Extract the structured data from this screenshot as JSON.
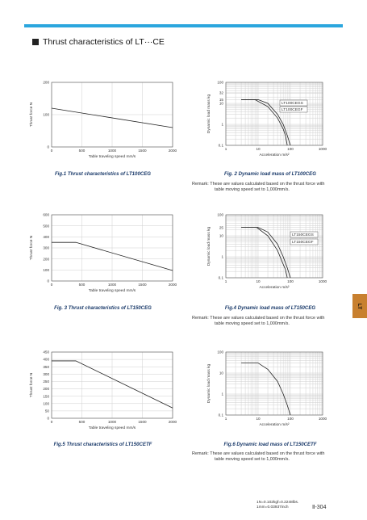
{
  "page": {
    "title": "Thrust characteristics of LT···CE",
    "tab": "LT",
    "footer_note": [
      "1N=0.102kgf=0.2248lbs.",
      "1mm=0.03937inch"
    ],
    "page_number": "Ⅱ-304",
    "accent_color": "#2ba6de",
    "tab_color": "#c8802f"
  },
  "remarks": [
    {
      "line1": "Remark: These are values calculated based on the thrust force with",
      "line2": "table moving speed set to 1,000mm/s."
    },
    {
      "line1": "Remark: These are values calculated based on the thrust force with",
      "line2": "table moving speed set to 1,000mm/s."
    },
    {
      "line1": "Remark: These are values calculated based on the thrust force with",
      "line2": "table moving speed set to 1,000mm/s."
    }
  ],
  "chart_data": [
    {
      "id": "fig1",
      "type": "line",
      "caption": "Fig.1  Thrust characteristics of LT100CEG",
      "xlabel": "Table traveling speed mm/s",
      "ylabel": "Thrust force N",
      "xscale": "linear",
      "yscale": "linear",
      "xlim": [
        0,
        2000
      ],
      "ylim": [
        0,
        200
      ],
      "xticks": [
        0,
        500,
        1000,
        1500,
        2000
      ],
      "yticks": [
        0,
        100,
        200
      ],
      "xgrid": [
        0,
        500,
        1000,
        1500,
        2000
      ],
      "ygrid": [
        0,
        100,
        200
      ],
      "series": [
        {
          "x": [
            0,
            2000
          ],
          "y": [
            120,
            60
          ]
        }
      ]
    },
    {
      "id": "fig2",
      "type": "line",
      "caption": "Fig. 2  Dynamic load mass of LT100CEG",
      "xlabel": "Acceleration m/s²",
      "ylabel": "Dynamic load mass kg",
      "xscale": "log",
      "yscale": "log",
      "xlim": [
        1,
        1000
      ],
      "ylim": [
        0.1,
        100
      ],
      "xticks": [
        1,
        10,
        100,
        1000
      ],
      "yticks": [
        0.1,
        1,
        10,
        15,
        32,
        100
      ],
      "xgrid": [
        1,
        2,
        3,
        4,
        5,
        6,
        7,
        8,
        9,
        10,
        20,
        30,
        40,
        50,
        60,
        70,
        80,
        90,
        100,
        200,
        300,
        400,
        500,
        600,
        700,
        800,
        900,
        1000
      ],
      "ygrid": [
        0.1,
        0.2,
        0.3,
        0.4,
        0.5,
        0.6,
        0.7,
        0.8,
        0.9,
        1,
        2,
        3,
        4,
        5,
        6,
        7,
        8,
        9,
        10,
        15,
        20,
        30,
        32,
        40,
        50,
        60,
        70,
        80,
        90,
        100
      ],
      "legend": [
        "LT100CEGS",
        "LT100CEGF"
      ],
      "series": [
        {
          "name": "LT100CEGS",
          "x": [
            3,
            10,
            20,
            40,
            60,
            80,
            100
          ],
          "y": [
            15,
            15,
            10,
            3,
            1,
            0.3,
            0.1
          ]
        },
        {
          "name": "LT100CEGF",
          "x": [
            3,
            8,
            20,
            40,
            60,
            70,
            80
          ],
          "y": [
            15,
            15,
            7,
            2,
            0.6,
            0.3,
            0.1
          ]
        }
      ]
    },
    {
      "id": "fig3",
      "type": "line",
      "caption": "Fig. 3  Thrust characteristics of LT150CEG",
      "xlabel": "Table traveling speed mm/s",
      "ylabel": "Thrust force N",
      "xscale": "linear",
      "yscale": "linear",
      "xlim": [
        0,
        2000
      ],
      "ylim": [
        0,
        600
      ],
      "xticks": [
        0,
        500,
        1000,
        1500,
        2000
      ],
      "yticks": [
        0,
        100,
        200,
        300,
        400,
        500,
        600
      ],
      "xgrid": [
        0,
        500,
        1000,
        1500,
        2000
      ],
      "ygrid": [
        0,
        100,
        200,
        300,
        400,
        500,
        600
      ],
      "series": [
        {
          "x": [
            0,
            400,
            2000
          ],
          "y": [
            350,
            350,
            95
          ]
        }
      ]
    },
    {
      "id": "fig4",
      "type": "line",
      "caption": "Fig.4  Dynamic load mass of LT150CEG",
      "xlabel": "Acceleration m/s²",
      "ylabel": "Dynamic load mass kg",
      "xscale": "log",
      "yscale": "log",
      "xlim": [
        1,
        1000
      ],
      "ylim": [
        0.1,
        100
      ],
      "xticks": [
        1,
        10,
        100,
        1000
      ],
      "yticks": [
        0.1,
        1,
        10,
        25,
        100
      ],
      "xgrid": [
        1,
        2,
        3,
        4,
        5,
        6,
        7,
        8,
        9,
        10,
        20,
        30,
        40,
        50,
        60,
        70,
        80,
        90,
        100,
        200,
        300,
        400,
        500,
        600,
        700,
        800,
        900,
        1000
      ],
      "ygrid": [
        0.1,
        0.2,
        0.3,
        0.4,
        0.5,
        0.6,
        0.7,
        0.8,
        0.9,
        1,
        2,
        3,
        4,
        5,
        6,
        7,
        8,
        9,
        10,
        20,
        25,
        30,
        40,
        50,
        60,
        70,
        80,
        90,
        100
      ],
      "legend": [
        "LT150CEGS",
        "LT150CEGF"
      ],
      "series": [
        {
          "name": "LT150CEGS",
          "x": [
            3,
            10,
            20,
            40,
            60,
            80,
            100
          ],
          "y": [
            25,
            25,
            15,
            4,
            1,
            0.3,
            0.1
          ]
        },
        {
          "name": "LT150CEGF",
          "x": [
            3,
            9,
            20,
            40,
            55,
            70,
            80
          ],
          "y": [
            25,
            25,
            10,
            2,
            0.6,
            0.25,
            0.1
          ]
        }
      ]
    },
    {
      "id": "fig5",
      "type": "line",
      "caption": "Fig.5  Thrust characteristics of LT150CETF",
      "xlabel": "Table traveling speed   mm/s",
      "ylabel": "Thrust force   N",
      "xscale": "linear",
      "yscale": "linear",
      "xlim": [
        0,
        2000
      ],
      "ylim": [
        0,
        450
      ],
      "xticks": [
        0,
        500,
        1000,
        1500,
        2000
      ],
      "yticks": [
        0,
        50,
        100,
        150,
        200,
        250,
        300,
        350,
        400,
        450
      ],
      "xgrid": [
        0,
        500,
        1000,
        1500,
        2000
      ],
      "ygrid": [
        0,
        50,
        100,
        150,
        200,
        250,
        300,
        350,
        400,
        450
      ],
      "series": [
        {
          "x": [
            0,
            400,
            2000
          ],
          "y": [
            390,
            390,
            70
          ]
        }
      ]
    },
    {
      "id": "fig6",
      "type": "line",
      "caption": "Fig.6  Dynamic load mass of LT150CETF",
      "xlabel": "Acceleration   m/s²",
      "ylabel": "Dynamic load mass   kg",
      "xscale": "log",
      "yscale": "log",
      "xlim": [
        1,
        1000
      ],
      "ylim": [
        0.1,
        100
      ],
      "xticks": [
        1,
        10,
        100,
        1000
      ],
      "yticks": [
        0.1,
        1,
        10,
        100
      ],
      "xgrid": [
        1,
        2,
        3,
        4,
        5,
        6,
        7,
        8,
        9,
        10,
        20,
        30,
        40,
        50,
        60,
        70,
        80,
        90,
        100,
        200,
        300,
        400,
        500,
        600,
        700,
        800,
        900,
        1000
      ],
      "ygrid": [
        0.1,
        0.2,
        0.3,
        0.4,
        0.5,
        0.6,
        0.7,
        0.8,
        0.9,
        1,
        2,
        3,
        4,
        5,
        6,
        7,
        8,
        9,
        10,
        20,
        30,
        40,
        50,
        60,
        70,
        80,
        90,
        100
      ],
      "series": [
        {
          "x": [
            3,
            10,
            20,
            40,
            60,
            80,
            100
          ],
          "y": [
            30,
            30,
            15,
            4,
            1,
            0.3,
            0.1
          ]
        }
      ]
    }
  ]
}
